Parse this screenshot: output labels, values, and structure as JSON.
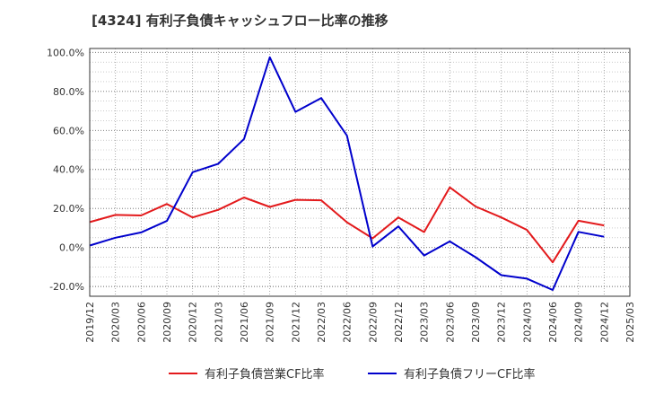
{
  "title": "[4324]  有利子負債キャッシュフロー比率の推移",
  "chart_data": {
    "type": "line",
    "x": [
      "2019/12",
      "2020/03",
      "2020/06",
      "2020/09",
      "2020/12",
      "2021/03",
      "2021/06",
      "2021/09",
      "2021/12",
      "2022/03",
      "2022/06",
      "2022/09",
      "2022/12",
      "2023/03",
      "2023/06",
      "2023/09",
      "2023/12",
      "2024/03",
      "2024/06",
      "2024/09",
      "2024/12",
      "2025/03"
    ],
    "series": [
      {
        "name": "有利子負債営業CF比率",
        "color": "#e31a1c",
        "values": [
          13.0,
          16.7,
          16.4,
          22.3,
          15.4,
          19.3,
          25.6,
          20.8,
          24.4,
          24.2,
          12.9,
          4.7,
          15.4,
          7.9,
          30.8,
          21.0,
          15.4,
          9.0,
          -7.6,
          13.7,
          11.3,
          null
        ]
      },
      {
        "name": "有利子負債フリーCF比率",
        "color": "#0000cc",
        "values": [
          1.0,
          5.0,
          7.7,
          13.6,
          38.6,
          42.9,
          55.6,
          97.5,
          69.5,
          76.6,
          57.3,
          0.5,
          10.8,
          -4.1,
          3.1,
          -5.0,
          -14.2,
          -16.0,
          -21.8,
          8.0,
          5.5,
          null
        ]
      }
    ],
    "yticks": [
      -20,
      0,
      20,
      40,
      60,
      80,
      100
    ],
    "ytick_labels": [
      "-20.0%",
      "0.0%",
      "20.0%",
      "40.0%",
      "60.0%",
      "80.0%",
      "100.0%"
    ],
    "ylim": [
      -25,
      102
    ],
    "grid": true,
    "legend_position": "bottom"
  }
}
